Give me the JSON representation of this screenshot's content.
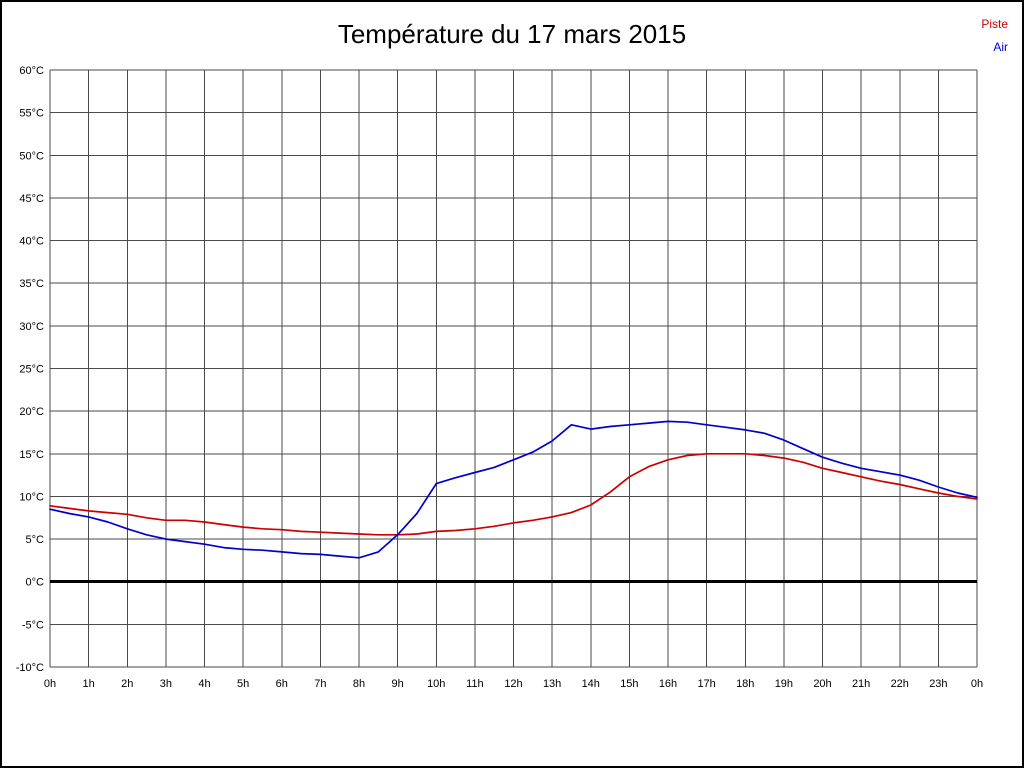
{
  "chart_data": {
    "type": "line",
    "title": "Température du 17 mars 2015",
    "xlabel": "",
    "ylabel": "",
    "xlim": [
      0,
      24
    ],
    "ylim": [
      -10,
      60
    ],
    "grid": true,
    "legend_position": "top-right",
    "zero_line": true,
    "xtick_values": [
      0,
      1,
      2,
      3,
      4,
      5,
      6,
      7,
      8,
      9,
      10,
      11,
      12,
      13,
      14,
      15,
      16,
      17,
      18,
      19,
      20,
      21,
      22,
      23,
      24
    ],
    "xtick_labels": [
      "0h",
      "1h",
      "2h",
      "3h",
      "4h",
      "5h",
      "6h",
      "7h",
      "8h",
      "9h",
      "10h",
      "11h",
      "12h",
      "13h",
      "14h",
      "15h",
      "16h",
      "17h",
      "18h",
      "19h",
      "20h",
      "21h",
      "22h",
      "23h",
      "0h"
    ],
    "ytick_values": [
      60,
      55,
      50,
      45,
      40,
      35,
      30,
      25,
      20,
      15,
      10,
      5,
      0,
      -5,
      -10
    ],
    "ytick_labels": [
      "60°C",
      "55°C",
      "50°C",
      "45°C",
      "40°C",
      "35°C",
      "30°C",
      "25°C",
      "20°C",
      "15°C",
      "10°C",
      "5°C",
      "0°C",
      "-5°C",
      "-10°C"
    ],
    "x": [
      0,
      0.5,
      1,
      1.5,
      2,
      2.5,
      3,
      3.5,
      4,
      4.5,
      5,
      5.5,
      6,
      6.5,
      7,
      7.5,
      8,
      8.5,
      9,
      9.5,
      10,
      10.5,
      11,
      11.5,
      12,
      12.5,
      13,
      13.5,
      14,
      14.5,
      15,
      15.5,
      16,
      16.5,
      17,
      17.5,
      18,
      18.5,
      19,
      19.5,
      20,
      20.5,
      21,
      21.5,
      22,
      22.5,
      23,
      23.5,
      24
    ],
    "series": [
      {
        "name": "Piste",
        "color": "#cc0000",
        "values": [
          8.9,
          8.6,
          8.3,
          8.1,
          7.9,
          7.5,
          7.2,
          7.2,
          7.0,
          6.7,
          6.4,
          6.2,
          6.1,
          5.9,
          5.8,
          5.7,
          5.6,
          5.5,
          5.5,
          5.6,
          5.9,
          6.0,
          6.2,
          6.5,
          6.9,
          7.2,
          7.6,
          8.1,
          9.0,
          10.5,
          12.3,
          13.5,
          14.3,
          14.8,
          15.0,
          15.0,
          15.0,
          14.8,
          14.5,
          14.0,
          13.3,
          12.8,
          12.3,
          11.8,
          11.4,
          10.9,
          10.4,
          10.0,
          9.7
        ]
      },
      {
        "name": "Air",
        "color": "#0000cc",
        "values": [
          8.5,
          8.0,
          7.6,
          7.0,
          6.2,
          5.5,
          5.0,
          4.7,
          4.4,
          4.0,
          3.8,
          3.7,
          3.5,
          3.3,
          3.2,
          3.0,
          2.8,
          3.5,
          5.5,
          8.0,
          11.5,
          12.2,
          12.8,
          13.4,
          14.3,
          15.2,
          16.5,
          18.4,
          17.9,
          18.2,
          18.4,
          18.6,
          18.8,
          18.7,
          18.4,
          18.1,
          17.8,
          17.4,
          16.6,
          15.6,
          14.6,
          13.9,
          13.3,
          12.9,
          12.5,
          11.9,
          11.1,
          10.4,
          9.9
        ]
      }
    ]
  }
}
